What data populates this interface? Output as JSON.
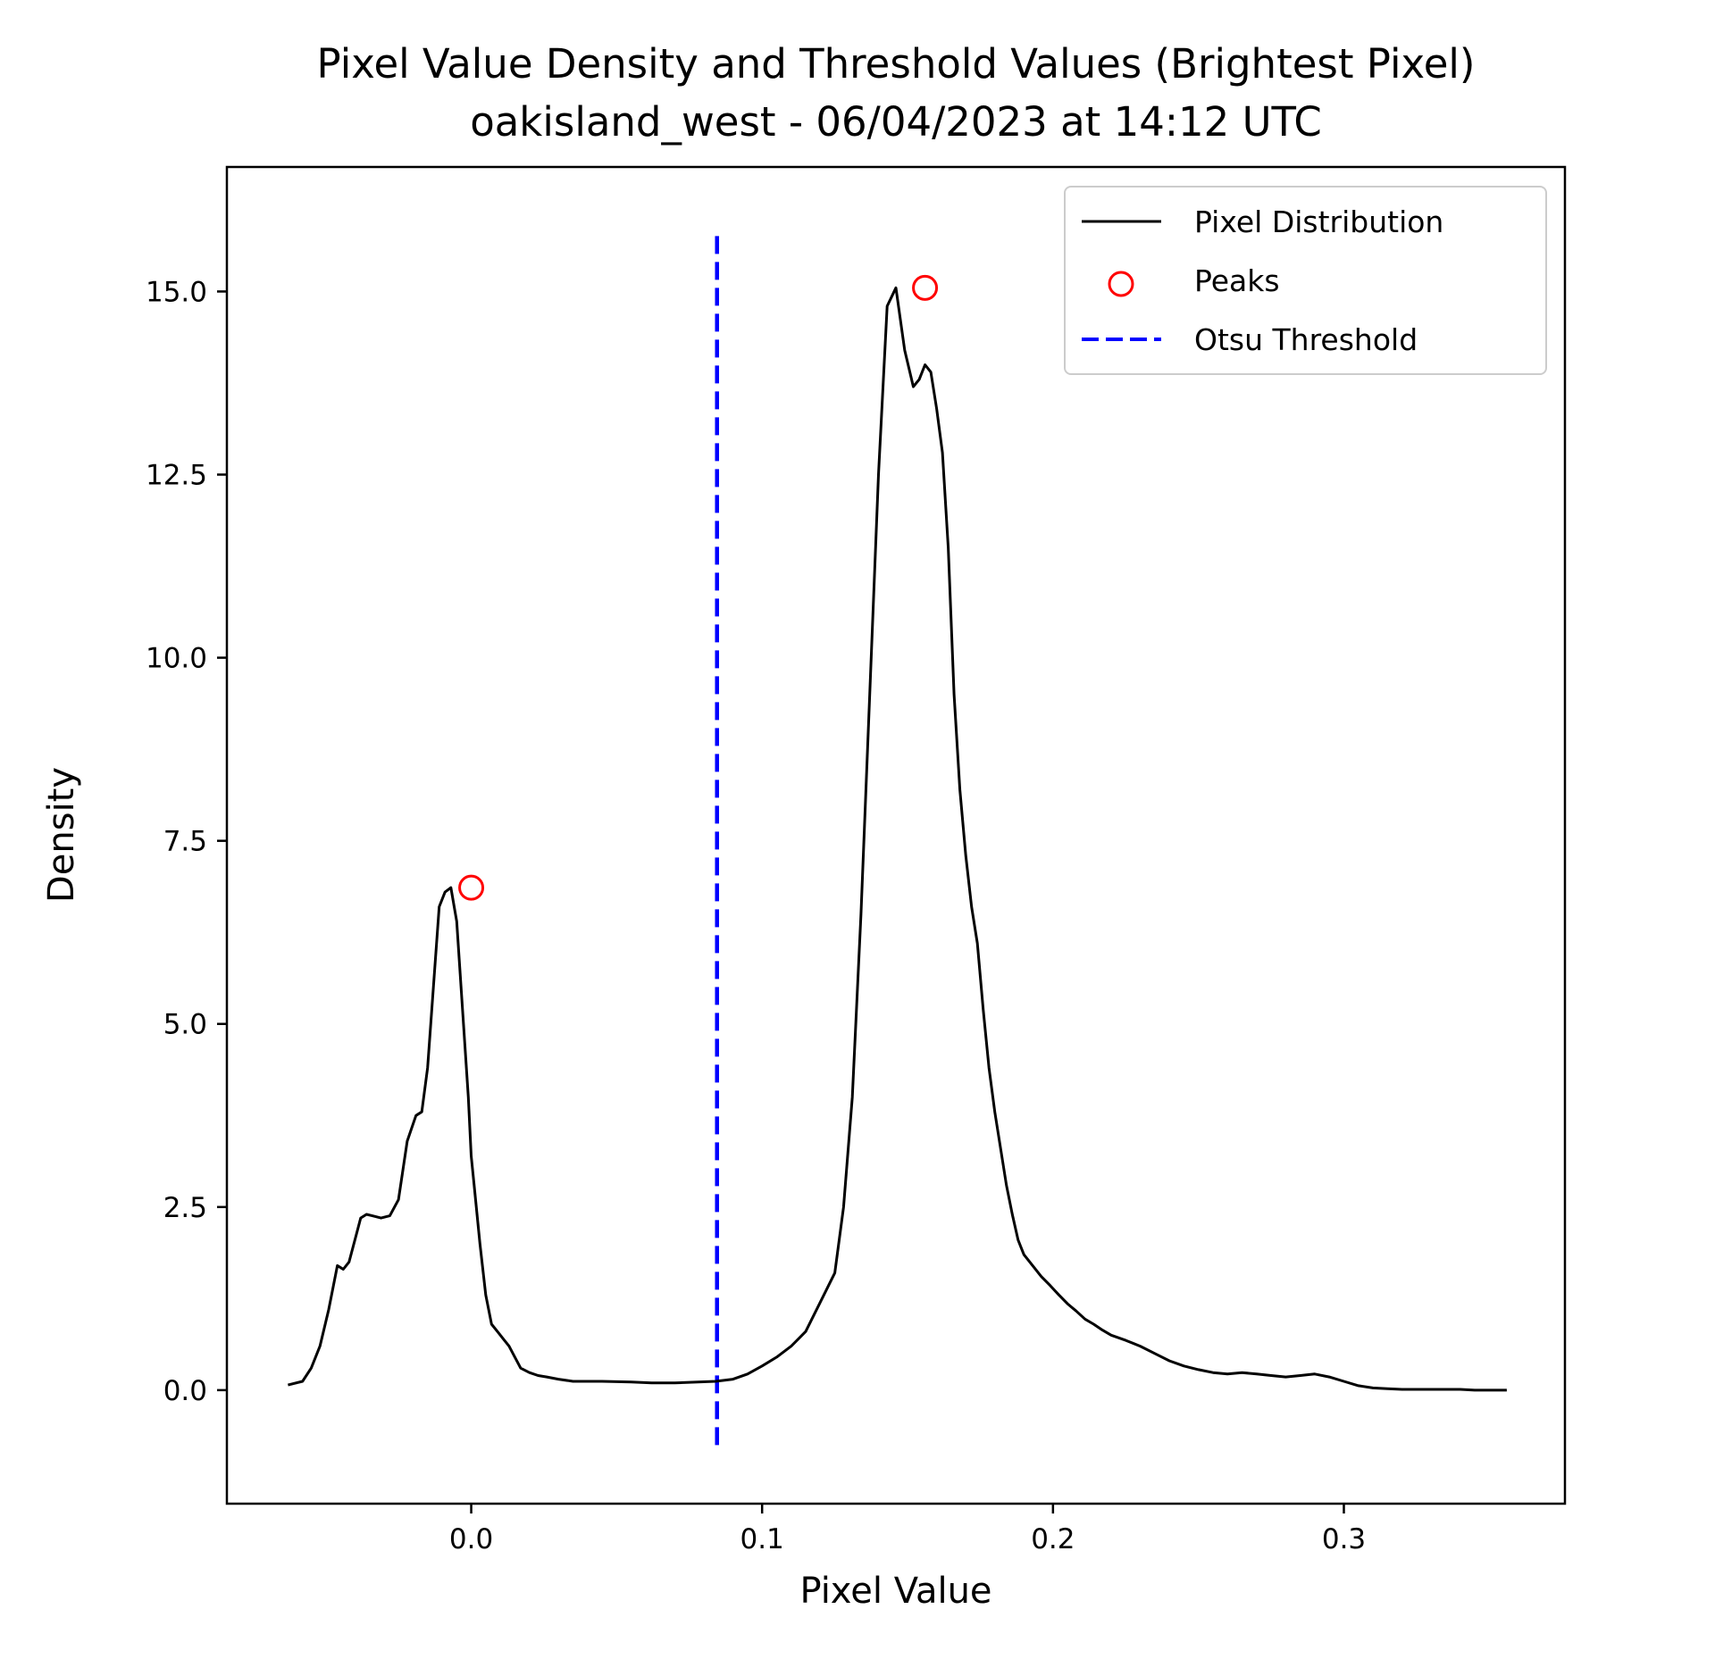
{
  "chart_data": {
    "type": "line",
    "title": "Pixel Value Density and Threshold Values (Brightest Pixel)",
    "subtitle": "oakisland_west - 06/04/2023 at 14:12 UTC",
    "xlabel": "Pixel Value",
    "ylabel": "Density",
    "xlim": [
      -0.084,
      0.376
    ],
    "ylim": [
      -1.55,
      16.7
    ],
    "x_ticks": [
      0.0,
      0.1,
      0.2,
      0.3
    ],
    "x_tick_labels": [
      "0.0",
      "0.1",
      "0.2",
      "0.3"
    ],
    "y_ticks": [
      0.0,
      2.5,
      5.0,
      7.5,
      10.0,
      12.5,
      15.0
    ],
    "y_tick_labels": [
      "0.0",
      "2.5",
      "5.0",
      "7.5",
      "10.0",
      "12.5",
      "15.0"
    ],
    "grid": false,
    "legend_position": "top-right",
    "series": [
      {
        "name": "Pixel Distribution",
        "color": "#000000",
        "style": "solid",
        "x": [
          -0.063,
          -0.058,
          -0.055,
          -0.052,
          -0.049,
          -0.046,
          -0.044,
          -0.042,
          -0.04,
          -0.038,
          -0.036,
          -0.034,
          -0.031,
          -0.028,
          -0.025,
          -0.022,
          -0.019,
          -0.017,
          -0.015,
          -0.013,
          -0.011,
          -0.009,
          -0.007,
          -0.005,
          -0.003,
          -0.001,
          0.0,
          0.001,
          0.003,
          0.005,
          0.007,
          0.009,
          0.011,
          0.013,
          0.015,
          0.017,
          0.02,
          0.023,
          0.026,
          0.03,
          0.035,
          0.045,
          0.055,
          0.062,
          0.07,
          0.078,
          0.084,
          0.09,
          0.095,
          0.1,
          0.105,
          0.11,
          0.115,
          0.12,
          0.125,
          0.128,
          0.131,
          0.134,
          0.137,
          0.14,
          0.143,
          0.146,
          0.149,
          0.152,
          0.154,
          0.156,
          0.158,
          0.16,
          0.162,
          0.164,
          0.166,
          0.168,
          0.17,
          0.172,
          0.174,
          0.176,
          0.178,
          0.18,
          0.182,
          0.184,
          0.186,
          0.188,
          0.19,
          0.193,
          0.196,
          0.199,
          0.202,
          0.205,
          0.208,
          0.211,
          0.214,
          0.217,
          0.22,
          0.225,
          0.23,
          0.235,
          0.24,
          0.245,
          0.25,
          0.255,
          0.26,
          0.265,
          0.27,
          0.275,
          0.28,
          0.285,
          0.29,
          0.295,
          0.3,
          0.305,
          0.31,
          0.315,
          0.32,
          0.325,
          0.33,
          0.335,
          0.34,
          0.345,
          0.35,
          0.356
        ],
        "y": [
          0.07,
          0.12,
          0.3,
          0.6,
          1.1,
          1.7,
          1.65,
          1.75,
          2.05,
          2.35,
          2.4,
          2.38,
          2.35,
          2.38,
          2.6,
          3.4,
          3.75,
          3.8,
          4.4,
          5.5,
          6.6,
          6.8,
          6.86,
          6.4,
          5.2,
          4.0,
          3.2,
          2.8,
          2.0,
          1.3,
          0.9,
          0.8,
          0.7,
          0.6,
          0.45,
          0.3,
          0.24,
          0.2,
          0.18,
          0.15,
          0.12,
          0.12,
          0.11,
          0.1,
          0.1,
          0.11,
          0.12,
          0.15,
          0.22,
          0.33,
          0.45,
          0.6,
          0.8,
          1.2,
          1.6,
          2.5,
          4.0,
          6.5,
          9.5,
          12.5,
          14.8,
          15.05,
          14.2,
          13.7,
          13.8,
          14.0,
          13.9,
          13.4,
          12.8,
          11.5,
          9.5,
          8.2,
          7.3,
          6.6,
          6.1,
          5.2,
          4.4,
          3.8,
          3.3,
          2.8,
          2.4,
          2.05,
          1.85,
          1.7,
          1.55,
          1.43,
          1.3,
          1.18,
          1.08,
          0.97,
          0.9,
          0.82,
          0.75,
          0.68,
          0.6,
          0.5,
          0.4,
          0.33,
          0.28,
          0.24,
          0.22,
          0.24,
          0.22,
          0.2,
          0.18,
          0.2,
          0.22,
          0.18,
          0.12,
          0.06,
          0.03,
          0.02,
          0.01,
          0.01,
          0.01,
          0.01,
          0.01,
          0.0,
          0.0,
          0.0
        ]
      },
      {
        "name": "Peaks",
        "color": "#ff0000",
        "style": "marker",
        "x": [
          0.0,
          0.156
        ],
        "y": [
          6.86,
          15.05
        ]
      },
      {
        "name": "Otsu Threshold",
        "color": "#0000ff",
        "style": "dashed",
        "x": [
          0.0845,
          0.0845
        ],
        "y": [
          -0.75,
          15.8
        ]
      }
    ]
  }
}
